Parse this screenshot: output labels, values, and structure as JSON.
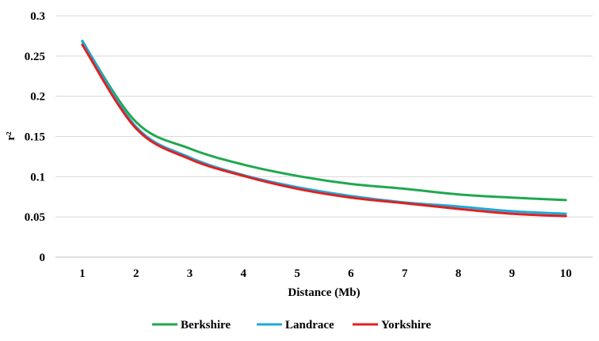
{
  "chart_data": {
    "type": "line",
    "title": "",
    "xlabel": "Distance (Mb)",
    "ylabel": "r²",
    "x": [
      1,
      2,
      3,
      4,
      5,
      6,
      7,
      8,
      9,
      10
    ],
    "ylim": [
      0,
      0.3
    ],
    "yticks": [
      "0",
      "0.05",
      "0.1",
      "0.15",
      "0.2",
      "0.25",
      "0.3"
    ],
    "xticks": [
      "1",
      "2",
      "3",
      "4",
      "5",
      "6",
      "7",
      "8",
      "9",
      "10"
    ],
    "grid": true,
    "legend_position": "bottom",
    "series": [
      {
        "name": "Berkshire",
        "color": "#1fa84f",
        "values": [
          0.268,
          0.168,
          0.135,
          0.115,
          0.101,
          0.091,
          0.085,
          0.078,
          0.074,
          0.071
        ]
      },
      {
        "name": "Landrace",
        "color": "#1ca9d9",
        "values": [
          0.269,
          0.162,
          0.124,
          0.102,
          0.087,
          0.076,
          0.068,
          0.063,
          0.057,
          0.054
        ]
      },
      {
        "name": "Yorkshire",
        "color": "#e0201f",
        "values": [
          0.264,
          0.16,
          0.122,
          0.101,
          0.085,
          0.074,
          0.067,
          0.06,
          0.054,
          0.051
        ]
      }
    ]
  }
}
